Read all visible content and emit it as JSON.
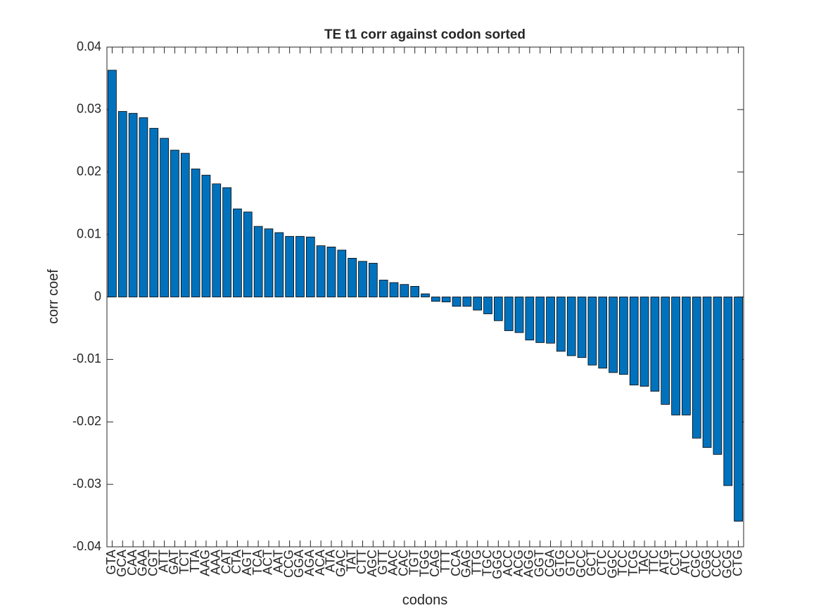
{
  "chart_data": {
    "type": "bar",
    "title": "TE t1 corr against codon sorted",
    "xlabel": "codons",
    "ylabel": "corr coef",
    "categories": [
      "GTA",
      "GCA",
      "CAA",
      "GAA",
      "CGT",
      "ATT",
      "GAT",
      "TCT",
      "TTA",
      "AAG",
      "AAA",
      "CAT",
      "CTA",
      "AGT",
      "TCA",
      "ACT",
      "AAT",
      "CCG",
      "GGA",
      "AGA",
      "ACA",
      "ATA",
      "GAC",
      "TAT",
      "CTT",
      "AGC",
      "GTT",
      "AAC",
      "CAC",
      "TGT",
      "TGG",
      "CAG",
      "TTT",
      "CCA",
      "GAG",
      "TTG",
      "TGC",
      "GGG",
      "ACC",
      "ACG",
      "AGG",
      "GGT",
      "CGA",
      "GTG",
      "GTC",
      "GCC",
      "GCT",
      "CTC",
      "GGC",
      "TCC",
      "TCG",
      "TAC",
      "TTC",
      "ATG",
      "CCT",
      "ATC",
      "CGC",
      "CGG",
      "CCC",
      "GCG",
      "CTG"
    ],
    "values": [
      0.0363,
      0.0297,
      0.0294,
      0.0287,
      0.027,
      0.0254,
      0.0235,
      0.023,
      0.0205,
      0.0195,
      0.0181,
      0.0175,
      0.0141,
      0.0136,
      0.0113,
      0.0109,
      0.0103,
      0.0097,
      0.0097,
      0.0096,
      0.0082,
      0.008,
      0.0075,
      0.0062,
      0.0057,
      0.0054,
      0.0027,
      0.0023,
      0.002,
      0.0017,
      0.0005,
      -0.0007,
      -0.0008,
      -0.0015,
      -0.0015,
      -0.0021,
      -0.0027,
      -0.0038,
      -0.0054,
      -0.0057,
      -0.0069,
      -0.0073,
      -0.0074,
      -0.0087,
      -0.0094,
      -0.0097,
      -0.0109,
      -0.0114,
      -0.0121,
      -0.0124,
      -0.0141,
      -0.0143,
      -0.0151,
      -0.0172,
      -0.0189,
      -0.0189,
      -0.0226,
      -0.0241,
      -0.0252,
      -0.0302,
      -0.0359
    ],
    "color": "#0072bd",
    "ylim": [
      -0.04,
      0.04
    ],
    "yticks": [
      -0.04,
      -0.03,
      -0.02,
      -0.01,
      0,
      0.01,
      0.02,
      0.03,
      0.04
    ],
    "grid": false
  }
}
